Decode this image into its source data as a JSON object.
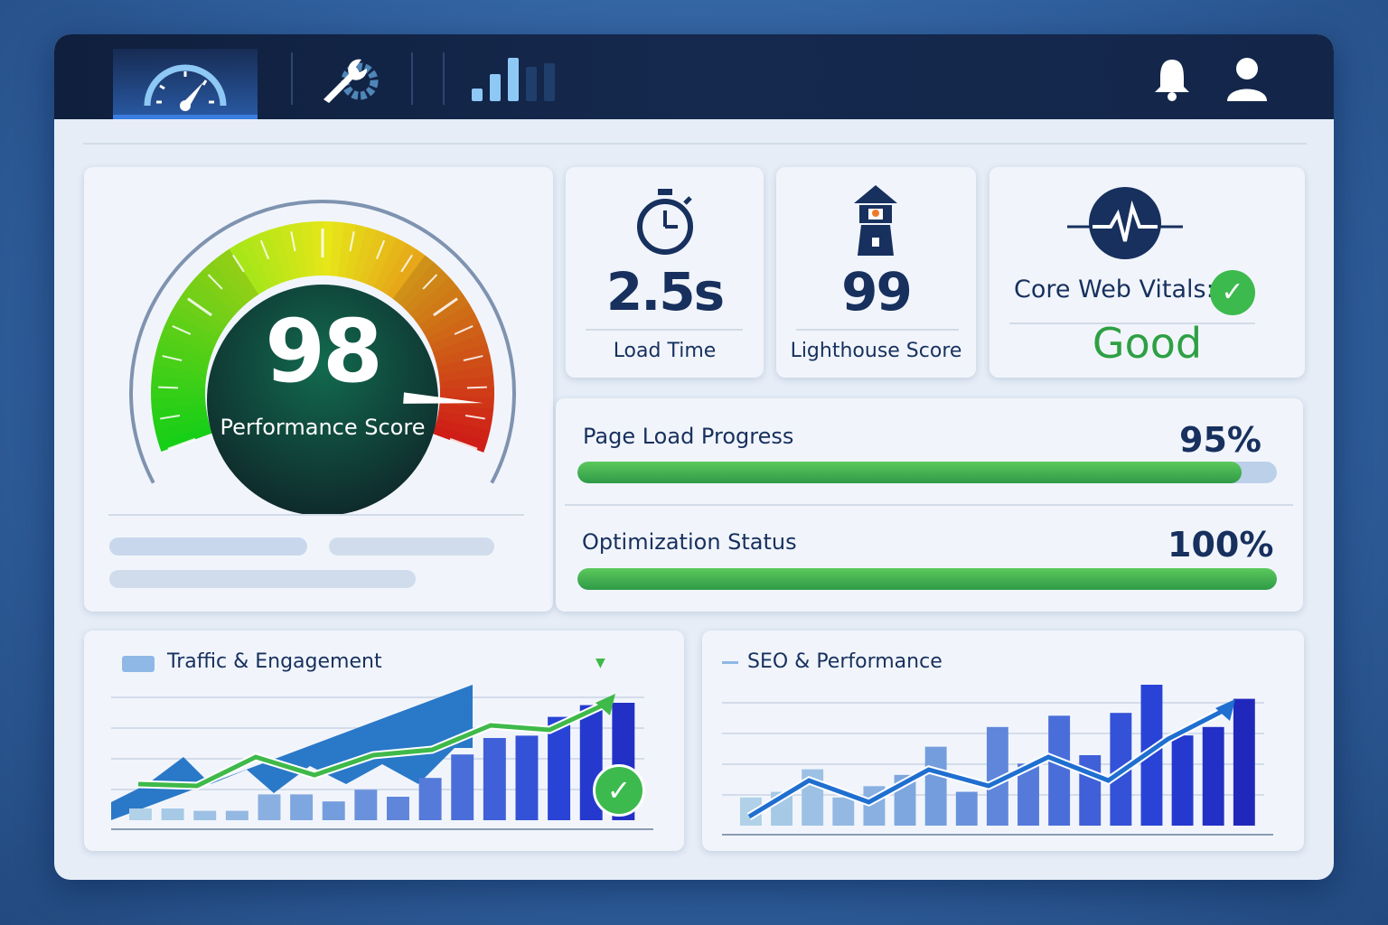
{
  "nav": {
    "tabs": [
      {
        "icon": "speedometer-icon",
        "active": true
      },
      {
        "icon": "wrench-gear-icon"
      },
      {
        "icon": "bar-chart-icon"
      }
    ],
    "right_icons": [
      "bell-icon",
      "user-icon"
    ]
  },
  "gauge": {
    "value": "98",
    "label": "Performance Score",
    "score": 98
  },
  "stats": [
    {
      "icon": "stopwatch-icon",
      "value": "2.5s",
      "label": "Load Time"
    },
    {
      "icon": "lighthouse-icon",
      "value": "99",
      "label": "Lighthouse Score"
    }
  ],
  "vitals": {
    "icon": "heartbeat-icon",
    "label": "Core Web Vitals:",
    "status": "Good",
    "status_color": "#2ea043"
  },
  "progress": [
    {
      "label": "Page Load Progress",
      "value_text": "95%",
      "value": 95
    },
    {
      "label": "Optimization Status",
      "value_text": "100%",
      "value": 100
    }
  ],
  "charts": [
    {
      "title": "Traffic & Engagement",
      "bars": [
        10,
        10,
        8,
        8,
        22,
        22,
        16,
        26,
        20,
        36,
        56,
        70,
        72,
        88,
        98,
        100
      ],
      "line": [
        30,
        28,
        60,
        40,
        62,
        68,
        95,
        90,
        120
      ],
      "line_color": "#3fb94a"
    },
    {
      "title": "SEO & Performance",
      "bars": [
        20,
        24,
        40,
        20,
        28,
        36,
        56,
        24,
        70,
        44,
        78,
        50,
        80,
        100,
        64,
        70,
        90
      ],
      "line": [
        0,
        40,
        16,
        52,
        34,
        66,
        40,
        86,
        120
      ],
      "line_color": "#1f6fd0"
    }
  ]
}
